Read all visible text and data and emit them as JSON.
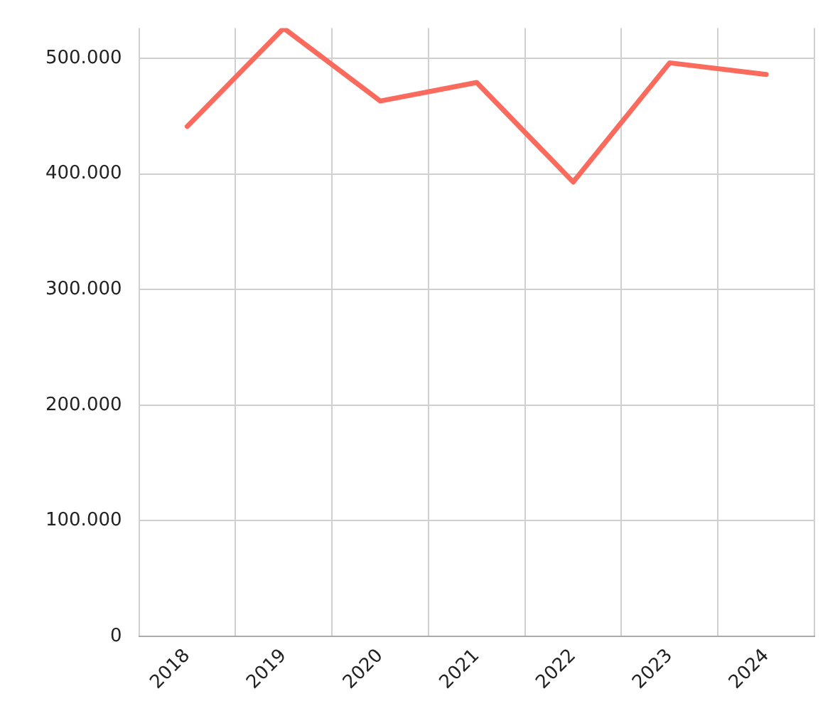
{
  "chart_data": {
    "type": "line",
    "categories": [
      "2018",
      "2019",
      "2020",
      "2021",
      "2022",
      "2023",
      "2024"
    ],
    "series": [
      {
        "color": "#fa6b5e",
        "values": [
          441000,
          526000,
          463000,
          479000,
          393000,
          496000,
          486000
        ]
      }
    ],
    "ylim": [
      0,
      526000
    ],
    "yticks": [
      0,
      {
        "value": 100000,
        "label": "100.000"
      },
      {
        "value": 200000,
        "label": "200.000"
      },
      {
        "value": 300000,
        "label": "300.000"
      },
      {
        "value": 400000,
        "label": "400.000"
      },
      {
        "value": 500000,
        "label": "500.000"
      }
    ],
    "grid": true,
    "legend": false,
    "marker": "none",
    "line_style": "solid"
  }
}
